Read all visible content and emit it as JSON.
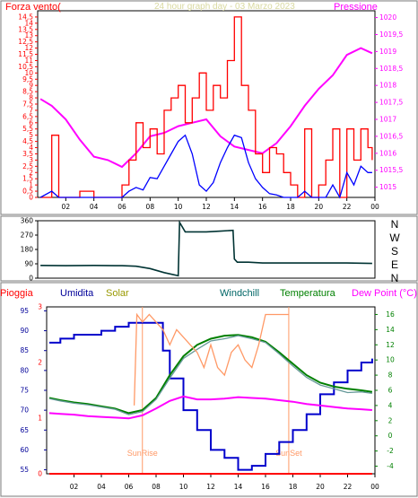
{
  "chart_data": [
    {
      "type": "line",
      "title": "24 hour graph day - 03 Marzo 2023",
      "ylabel_left": "Forza vento(",
      "ylabel_right": "Pressione",
      "x_ticks": [
        "02",
        "04",
        "06",
        "08",
        "10",
        "12",
        "14",
        "16",
        "18",
        "20",
        "22",
        "00"
      ],
      "y_left_ticks": [
        "0",
        "0,5",
        "1",
        "1,5",
        "2",
        "2,5",
        "3",
        "3,5",
        "4",
        "4,5",
        "5",
        "5,5",
        "6",
        "6,5",
        "7",
        "7,5",
        "8",
        "8,5",
        "9",
        "9,5",
        "10",
        "10,5",
        "11",
        "11,5",
        "12",
        "12,5",
        "13",
        "13,5",
        "14",
        "14,5"
      ],
      "y_left_range": [
        0,
        15
      ],
      "y_right_ticks": [
        "1015",
        "1015,5",
        "1016",
        "1016,5",
        "1017",
        "1017,5",
        "1018",
        "1018,5",
        "1019",
        "1019,5",
        "1020"
      ],
      "y_right_range": [
        1014.7,
        1020.2
      ],
      "series": [
        {
          "name": "Pressione",
          "color": "#ff00ff",
          "axis": "right",
          "x": [
            0.2,
            1,
            2,
            3,
            4,
            5,
            6,
            7,
            8,
            9,
            10,
            11,
            12,
            13,
            14,
            15,
            16,
            17,
            18,
            19,
            20,
            21,
            22,
            23,
            23.8
          ],
          "y": [
            1017.6,
            1017.4,
            1017.0,
            1016.4,
            1015.9,
            1015.8,
            1015.6,
            1016.0,
            1016.5,
            1016.6,
            1016.8,
            1016.9,
            1017.0,
            1016.5,
            1016.2,
            1016.1,
            1016.0,
            1016.3,
            1016.8,
            1017.4,
            1017.9,
            1018.3,
            1018.9,
            1019.1,
            1018.95
          ]
        },
        {
          "name": "Raffica",
          "color": "#ff0000",
          "axis": "left",
          "x": [
            0.2,
            1,
            1.5,
            2,
            3,
            4,
            5,
            6,
            6.5,
            7,
            7.5,
            8,
            8.5,
            9,
            9.5,
            10,
            10.5,
            11,
            11.5,
            12,
            12.5,
            13,
            13.5,
            14,
            14.5,
            15,
            15.5,
            16,
            16.5,
            17,
            17.5,
            18,
            18.5,
            19,
            19.5,
            20,
            20.5,
            21,
            21.5,
            22,
            22.5,
            23,
            23.5,
            23.8
          ],
          "y": [
            0,
            5,
            0,
            0,
            0.5,
            0,
            0,
            1,
            3,
            6,
            4,
            5.5,
            3.5,
            7,
            8,
            9,
            6,
            8,
            10,
            7,
            9,
            8,
            11,
            14.5,
            9,
            7,
            3.5,
            2,
            4,
            3.5,
            2,
            1,
            0,
            5.5,
            0,
            1,
            3,
            5.5,
            0,
            5.5,
            3,
            5.5,
            4,
            3
          ]
        },
        {
          "name": "Vento",
          "color": "#0000ff",
          "axis": "left",
          "x": [
            0.2,
            1,
            1.5,
            2,
            3,
            4,
            5,
            6,
            6.5,
            7,
            7.5,
            8,
            8.5,
            9,
            9.5,
            10,
            10.5,
            11,
            11.5,
            12,
            12.5,
            13,
            13.5,
            14,
            14.5,
            15,
            15.5,
            16,
            16.5,
            17,
            17.5,
            18,
            18.5,
            19,
            19.5,
            20,
            20.5,
            21,
            21.5,
            22,
            22.5,
            23,
            23.5,
            23.8
          ],
          "y": [
            0,
            0.5,
            0,
            0,
            0,
            0,
            0,
            0,
            0.5,
            0.8,
            0.6,
            1.6,
            1.5,
            2.5,
            3.5,
            4.5,
            5,
            3.5,
            1,
            0.5,
            1.2,
            2.8,
            4,
            5,
            4.8,
            2.8,
            1.5,
            0.8,
            0.3,
            0.2,
            0,
            0,
            0,
            0.5,
            0,
            0,
            0,
            1,
            0,
            2,
            1,
            2.5,
            2,
            2
          ]
        }
      ]
    },
    {
      "type": "line",
      "y_right_ticks": [
        "N",
        "W",
        "S",
        "E",
        "N"
      ],
      "y_left_ticks": [
        "0",
        "90",
        "180",
        "270",
        "360"
      ],
      "y_range": [
        0,
        360
      ],
      "series": [
        {
          "name": "Direzione",
          "color": "#003333",
          "x": [
            0.2,
            2,
            4,
            6,
            7,
            8,
            9,
            10,
            10.1,
            10.5,
            12,
            13,
            13.9,
            14,
            14.2,
            15,
            16,
            18,
            20,
            22,
            23.8
          ],
          "y": [
            80,
            78,
            80,
            78,
            75,
            60,
            35,
            15,
            350,
            290,
            290,
            295,
            300,
            120,
            100,
            100,
            95,
            95,
            95,
            95,
            92
          ]
        }
      ]
    },
    {
      "type": "line",
      "legend": [
        {
          "name": "Pioggia",
          "color": "#ff0000"
        },
        {
          "name": "Umidita",
          "color": "#000099"
        },
        {
          "name": "Solar",
          "color": "#999900"
        },
        {
          "name": "Windchill",
          "color": "#006666"
        },
        {
          "name": "Temperatura",
          "color": "#008000"
        },
        {
          "name": "Dew Point (°C)",
          "color": "#ff00ff"
        }
      ],
      "y_left_outer_ticks": [
        "0",
        "1",
        "2",
        "3"
      ],
      "y_left_ticks": [
        "55",
        "60",
        "65",
        "70",
        "75",
        "80",
        "85",
        "90",
        "95"
      ],
      "y_left_range": [
        54,
        96
      ],
      "y_right_ticks": [
        "-4",
        "-2",
        "0",
        "2",
        "4",
        "6",
        "8",
        "10",
        "12",
        "14",
        "16"
      ],
      "y_right_range": [
        -5,
        17
      ],
      "annotations": [
        {
          "text": "SunRise",
          "x": 7.0
        },
        {
          "text": "SunSet",
          "x": 17.7
        }
      ],
      "series": [
        {
          "name": "Umidita",
          "color": "#0000cc",
          "axis": "left",
          "x": [
            0.2,
            1,
            2,
            3,
            4,
            5,
            6,
            7,
            8,
            8.5,
            9,
            10,
            11,
            12,
            13,
            14,
            15,
            16,
            17,
            18,
            19,
            20,
            21,
            22,
            23,
            23.8
          ],
          "y": [
            87,
            88,
            89,
            89,
            90,
            91,
            92,
            92,
            92,
            85,
            78,
            70,
            65,
            60,
            58,
            55,
            56,
            59,
            62,
            65,
            69,
            74,
            77,
            80,
            82,
            83
          ]
        },
        {
          "name": "Temperatura",
          "color": "#008000",
          "axis": "right",
          "x": [
            0.2,
            1,
            2,
            3,
            4,
            5,
            6,
            7,
            8,
            9,
            10,
            11,
            12,
            13,
            14,
            15,
            16,
            17,
            18,
            19,
            20,
            21,
            22,
            23,
            23.8
          ],
          "y": [
            5,
            4.7,
            4.4,
            4.2,
            3.9,
            3.6,
            3.0,
            3.4,
            5.0,
            8.0,
            10.5,
            12.0,
            12.8,
            13.2,
            13.3,
            13.0,
            12.4,
            11.0,
            9.5,
            8.0,
            7.0,
            6.5,
            6.2,
            6.0,
            5.8
          ]
        },
        {
          "name": "Windchill",
          "color": "#669999",
          "axis": "right",
          "x": [
            0.2,
            1,
            2,
            3,
            4,
            5,
            6,
            7,
            8,
            9,
            10,
            11,
            12,
            13,
            14,
            15,
            16,
            17,
            18,
            19,
            20,
            21,
            22,
            23,
            23.8
          ],
          "y": [
            4.9,
            4.6,
            4.3,
            4.1,
            3.8,
            3.5,
            2.8,
            3.2,
            4.8,
            7.6,
            10.2,
            11.4,
            12.5,
            12.8,
            13.2,
            12.8,
            12.3,
            10.8,
            9.2,
            7.7,
            6.7,
            6.2,
            5.7,
            5.8,
            5.6
          ]
        },
        {
          "name": "Dew Point (°C)",
          "color": "#ff00ff",
          "axis": "right",
          "x": [
            0.2,
            1,
            2,
            3,
            4,
            5,
            6,
            7,
            8,
            9,
            10,
            11,
            12,
            13,
            14,
            15,
            16,
            17,
            18,
            19,
            20,
            21,
            22,
            23,
            23.8
          ],
          "y": [
            3,
            2.9,
            2.8,
            2.6,
            2.5,
            2.4,
            2.3,
            2.7,
            3.6,
            4.6,
            5.2,
            4.8,
            4.8,
            4.9,
            5.1,
            5.0,
            4.9,
            4.7,
            4.5,
            4.2,
            4.0,
            3.8,
            3.6,
            3.5,
            3.4
          ]
        },
        {
          "name": "Solar",
          "color": "#ff9966",
          "axis": "right",
          "x": [
            6.4,
            6.6,
            7,
            7.5,
            8,
            8.5,
            9,
            9.5,
            10,
            10.5,
            11,
            11.5,
            12,
            12.5,
            13,
            13.5,
            14,
            14.5,
            15,
            15.5,
            16,
            16.5,
            17,
            17.7
          ],
          "y": [
            4,
            16,
            15,
            16,
            15,
            14,
            12,
            14,
            13,
            12,
            11,
            9,
            12,
            9,
            8,
            11,
            12,
            10,
            9,
            12,
            16,
            16,
            16,
            16
          ]
        },
        {
          "name": "Pioggia",
          "color": "#ff0000",
          "axis": "left_outer",
          "x": [
            0.2,
            23.8
          ],
          "y": [
            0,
            0
          ]
        }
      ]
    }
  ]
}
